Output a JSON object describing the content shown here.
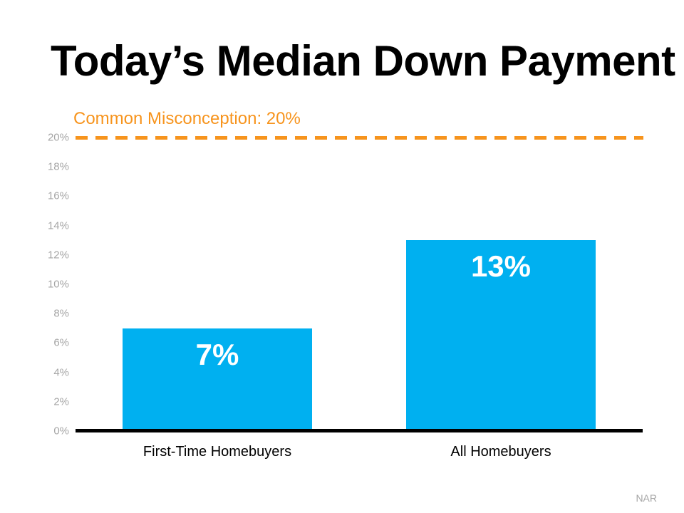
{
  "title": "Today’s Median Down Payment",
  "source": "NAR",
  "colors": {
    "bar_blue": "#00B0F0",
    "accent_orange": "#F7941D",
    "axis_gray": "#A6A6A6",
    "text_black": "#000000",
    "value_label_white": "#FFFFFF"
  },
  "chart_data": {
    "type": "bar",
    "title": "Today’s Median Down Payment",
    "categories": [
      "First-Time Homebuyers",
      "All Homebuyers"
    ],
    "values": [
      7,
      13
    ],
    "value_labels": [
      "7%",
      "13%"
    ],
    "xlabel": "",
    "ylabel": "",
    "ylim": [
      0,
      20
    ],
    "ytick_step": 2,
    "ytick_suffix": "%",
    "grid": false,
    "legend": "none",
    "bar_color": "#00B0F0",
    "annotation_line": {
      "value": 20,
      "label": "Common Misconception: 20%",
      "color": "#F7941D",
      "style": "dashed"
    },
    "source": "NAR"
  }
}
